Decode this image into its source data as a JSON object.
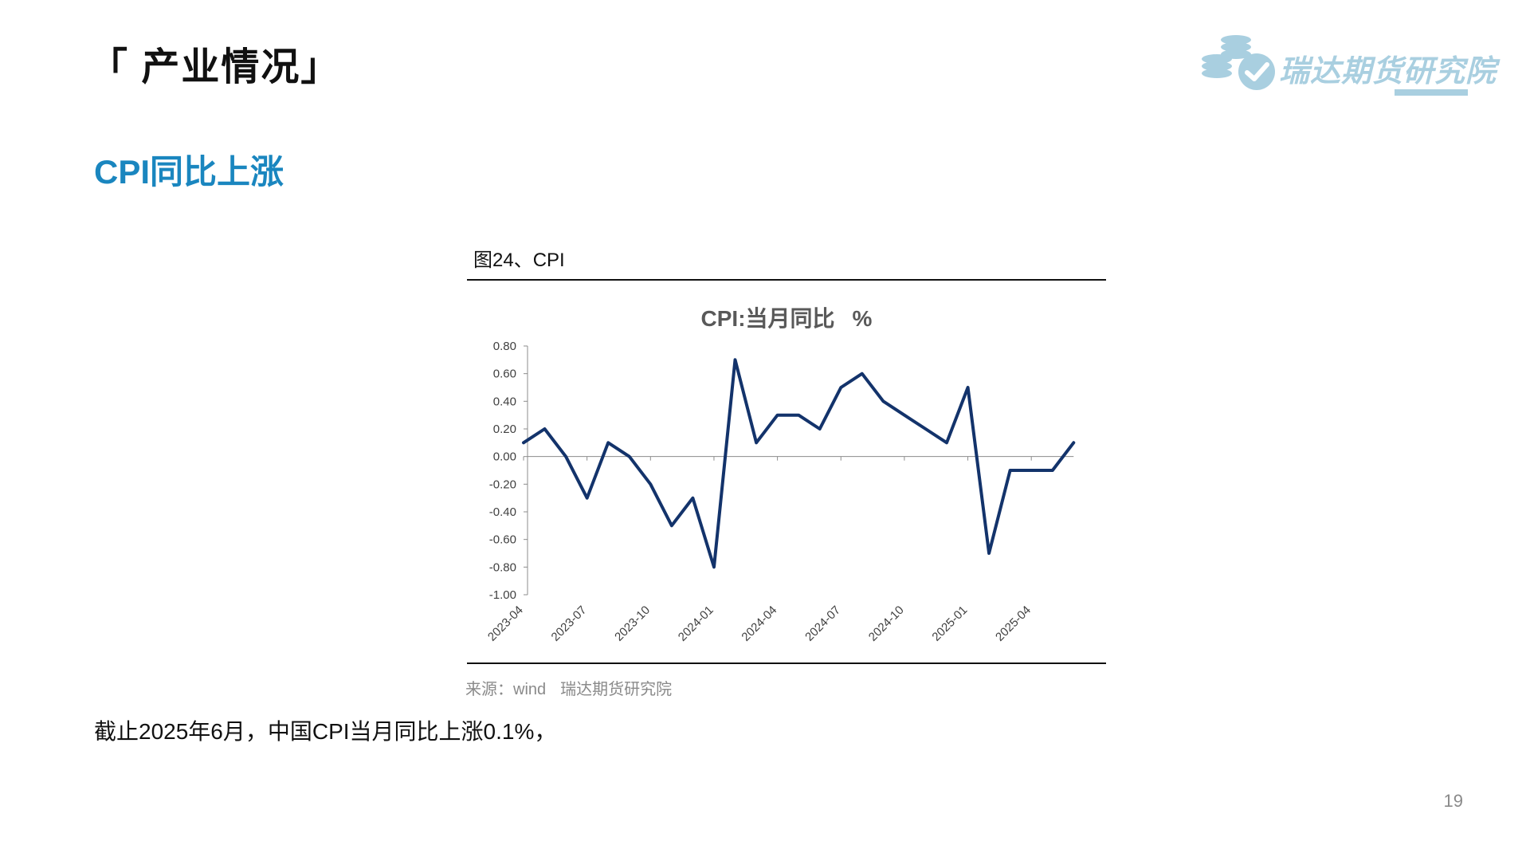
{
  "header": {
    "section_title": "「 产业情况」"
  },
  "logo": {
    "text": "瑞达期货研究院",
    "color": "#a9cfe0"
  },
  "subtitle": "CPI同比上涨",
  "figure": {
    "label": "图24、CPI"
  },
  "chart_data": {
    "type": "line",
    "title": "CPI:当月同比",
    "unit": "%",
    "xlabel": "",
    "ylabel": "",
    "ylim": [
      -1.0,
      0.8
    ],
    "yticks": [
      "0.80",
      "0.60",
      "0.40",
      "0.20",
      "0.00",
      "-0.20",
      "-0.40",
      "-0.60",
      "-0.80",
      "-1.00"
    ],
    "xtick_labels": [
      "2023-04",
      "2023-07",
      "2023-10",
      "2024-01",
      "2024-04",
      "2024-07",
      "2024-10",
      "2025-01",
      "2025-04"
    ],
    "x": [
      "2023-04",
      "2023-05",
      "2023-06",
      "2023-07",
      "2023-08",
      "2023-09",
      "2023-10",
      "2023-11",
      "2023-12",
      "2024-01",
      "2024-02",
      "2024-03",
      "2024-04",
      "2024-05",
      "2024-06",
      "2024-07",
      "2024-08",
      "2024-09",
      "2024-10",
      "2024-11",
      "2024-12",
      "2025-01",
      "2025-02",
      "2025-03",
      "2025-04",
      "2025-05",
      "2025-06"
    ],
    "series": [
      {
        "values": [
          0.1,
          0.2,
          0.0,
          -0.3,
          0.1,
          0.0,
          -0.2,
          -0.5,
          -0.3,
          -0.8,
          0.7,
          0.1,
          0.3,
          0.3,
          0.2,
          0.5,
          0.6,
          0.4,
          0.3,
          0.2,
          0.1,
          0.5,
          -0.7,
          -0.1,
          -0.1,
          -0.1,
          0.1
        ]
      }
    ],
    "line_color": "#13336b",
    "grid": false,
    "legend": "none"
  },
  "source": {
    "label": "来源：wind",
    "org": "瑞达期货研究院"
  },
  "note": "截止2025年6月，中国CPI当月同比上涨0.1%，",
  "page_number": "19"
}
